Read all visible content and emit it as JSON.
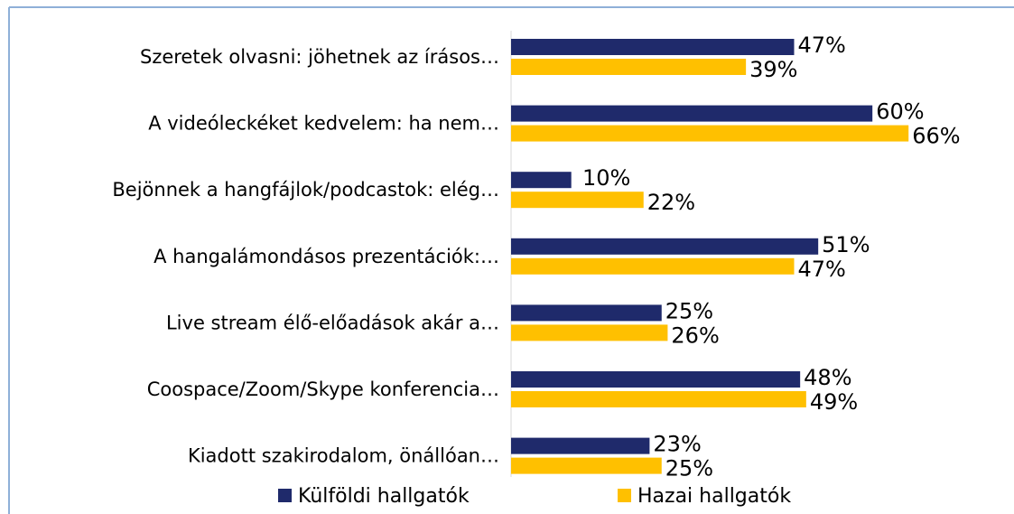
{
  "chart_data": {
    "type": "bar",
    "orientation": "horizontal",
    "categories": [
      "Szeretek olvasni: jöhetnek az írásos…",
      "A videóleckéket kedvelem: ha nem…",
      "Bejönnek a hangfájlok/podcastok: elég…",
      "A hangalámondásos prezentációk:…",
      "Live stream élő-előadások akár a…",
      "Coospace/Zoom/Skype konferencia…",
      "Kiadott szakirodalom, önállóan…"
    ],
    "series": [
      {
        "name": "Külföldi hallgatók",
        "color": "#1f2a6b",
        "values": [
          47,
          60,
          10,
          51,
          25,
          48,
          23
        ],
        "value_labels": [
          "47%",
          "60%",
          "10%",
          "51%",
          "25%",
          "48%",
          "23%"
        ]
      },
      {
        "name": "Hazai hallgatók",
        "color": "#ffc000",
        "values": [
          39,
          66,
          22,
          47,
          26,
          49,
          25
        ],
        "value_labels": [
          "39%",
          "66%",
          "22%",
          "47%",
          "26%",
          "49%",
          "25%"
        ]
      }
    ],
    "legend": "bottom"
  }
}
